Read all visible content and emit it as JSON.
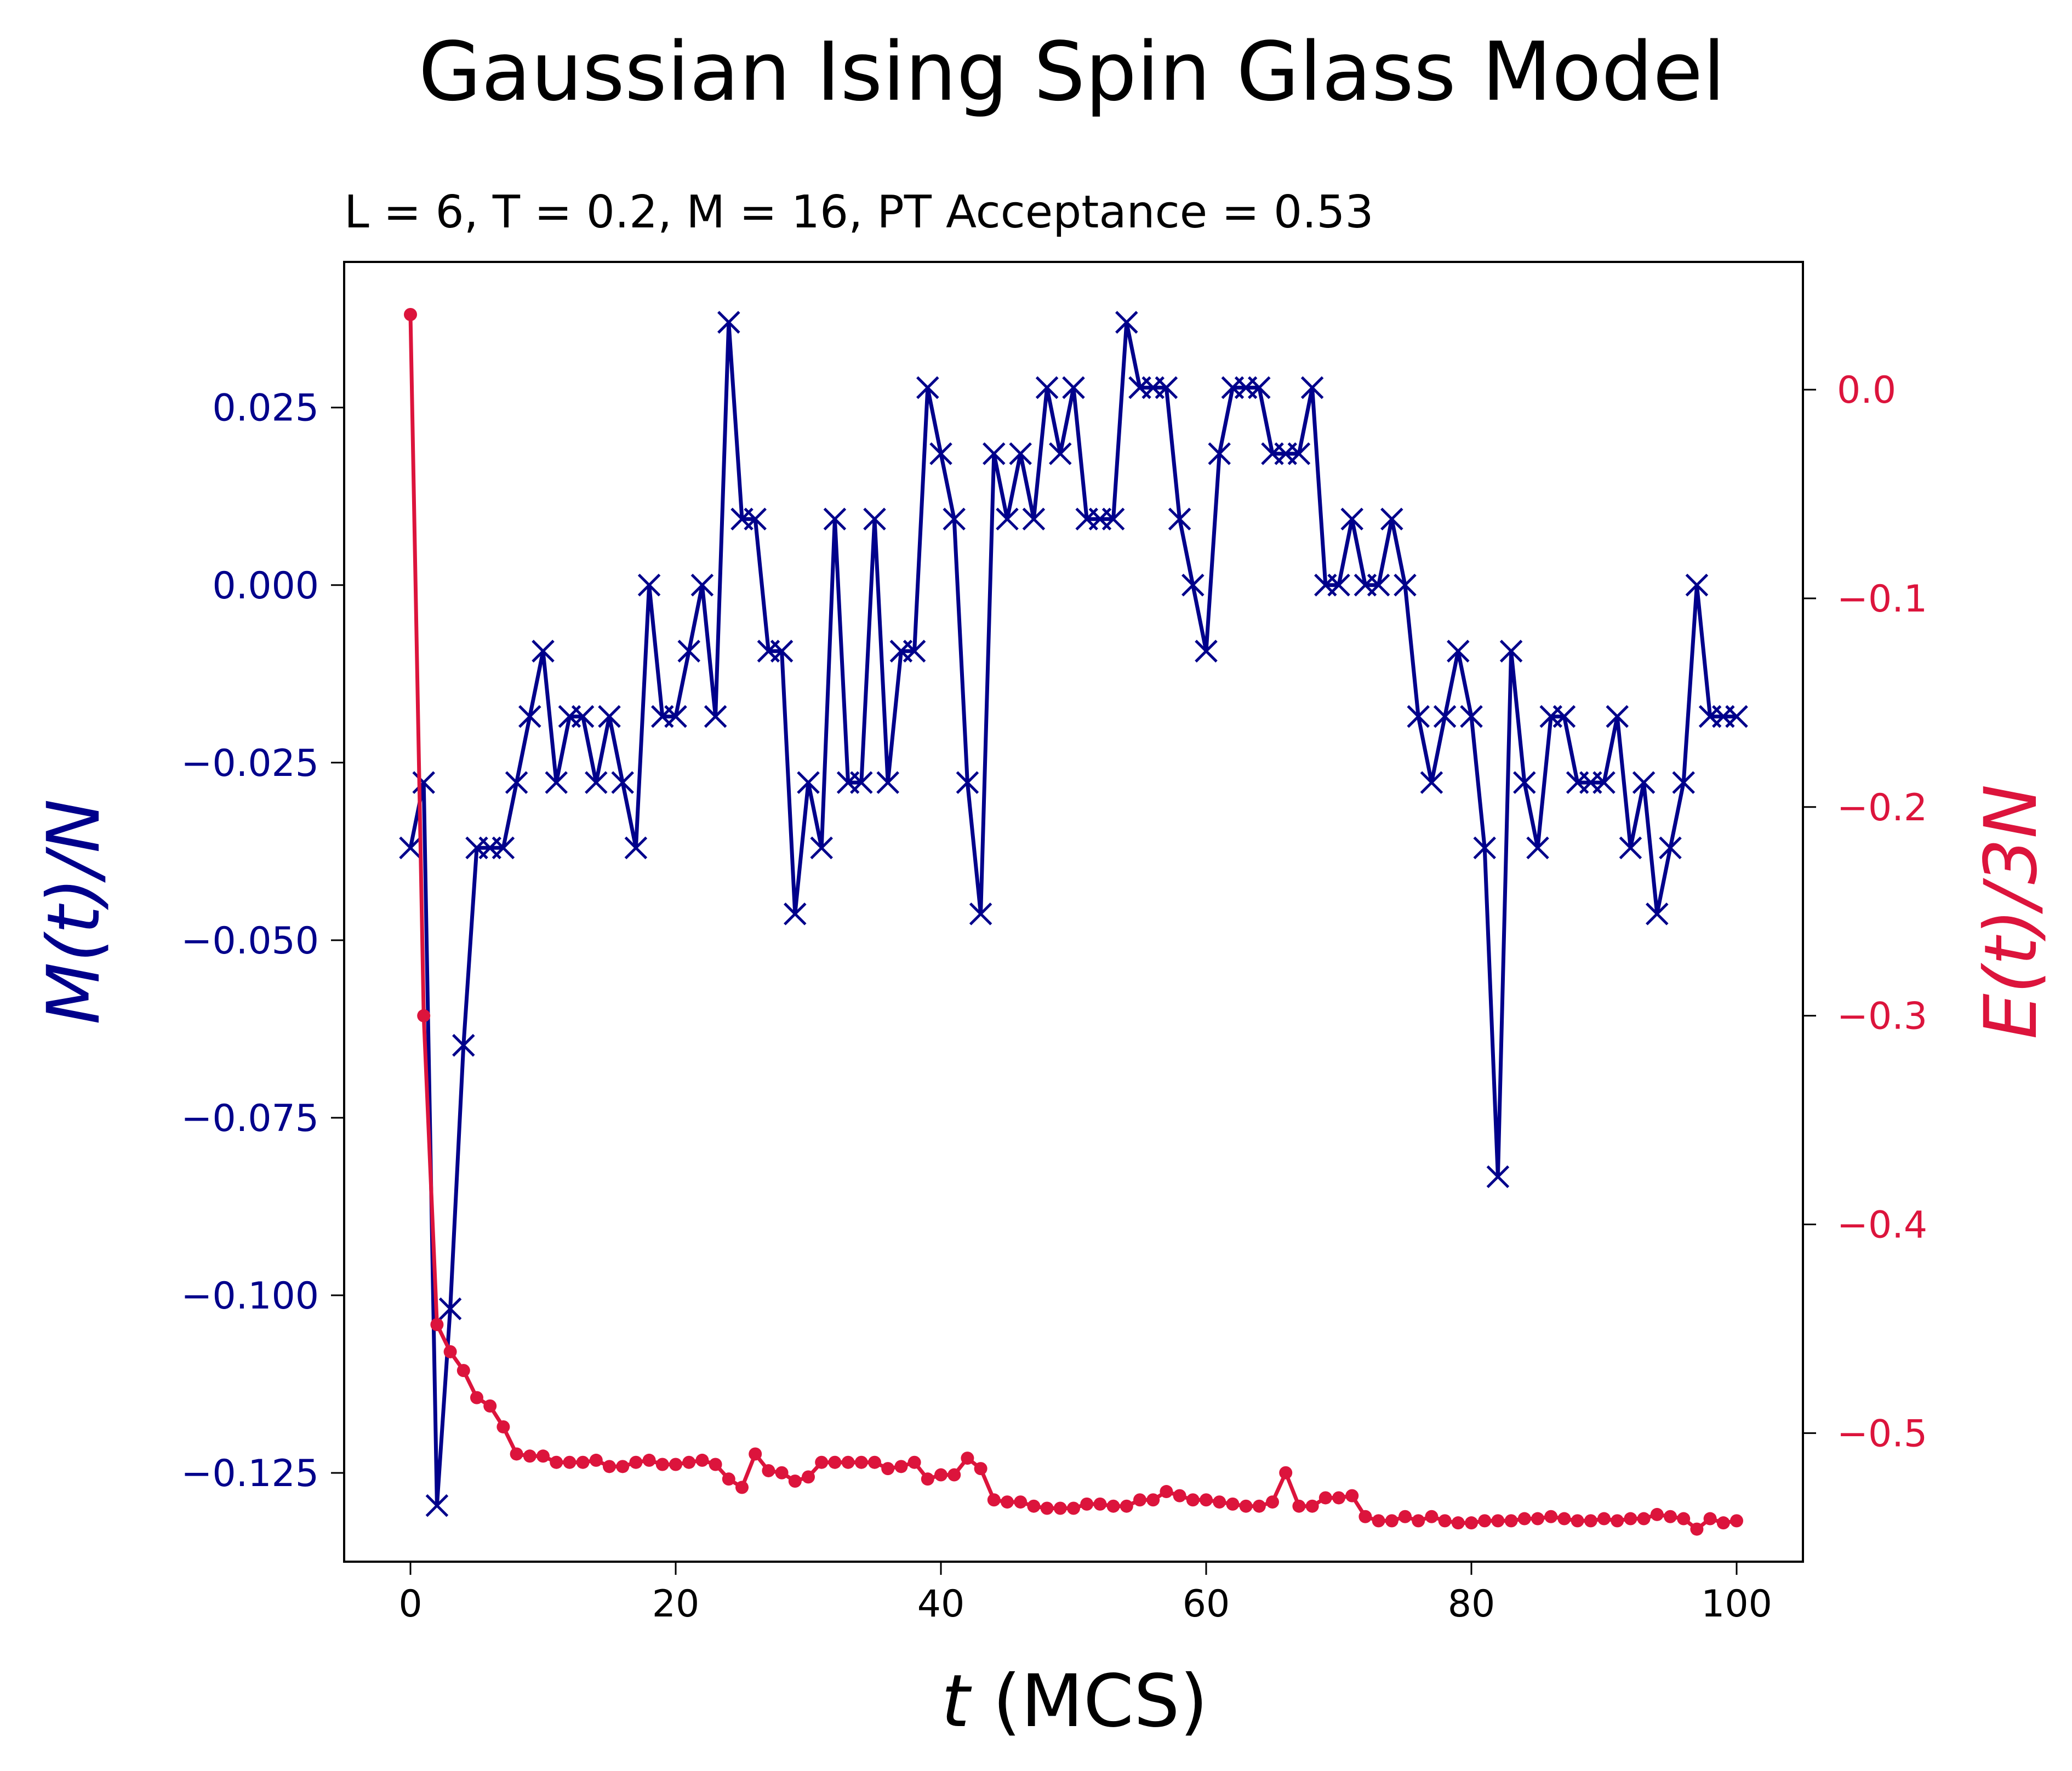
{
  "chart_data": {
    "type": "line",
    "title": "Gaussian Ising Spin Glass Model",
    "subtitle": "L = 6, T = 0.2, M = 16, PT Acceptance = 0.53",
    "xlabel_italic": "t",
    "xlabel_rest": " (MCS)",
    "ylabel_left": "M(t)/N",
    "ylabel_right": "E(t)/3N",
    "xlim": [
      -5,
      105
    ],
    "ylim_left": [
      -0.1375,
      0.0455
    ],
    "ylim_right": [
      -0.5616,
      0.0612
    ],
    "x_ticks": [
      0,
      20,
      40,
      60,
      80,
      100
    ],
    "x_tick_labels": [
      "0",
      "20",
      "40",
      "60",
      "80",
      "100"
    ],
    "y_left_ticks": [
      0.025,
      0.0,
      -0.025,
      -0.05,
      -0.075,
      -0.1,
      -0.125
    ],
    "y_left_tick_labels": [
      "0.025",
      "0.000",
      "−0.025",
      "−0.050",
      "−0.075",
      "−0.100",
      "−0.125"
    ],
    "y_right_ticks": [
      0.0,
      -0.1,
      -0.2,
      -0.3,
      -0.4,
      -0.5
    ],
    "y_right_tick_labels": [
      "0.0",
      "−0.1",
      "−0.2",
      "−0.3",
      "−0.4",
      "−0.5"
    ],
    "colors": {
      "magnetization": "#00008b",
      "energy": "#dc143c",
      "axes": "#000000",
      "background": "#ffffff"
    },
    "series": [
      {
        "axis": "left",
        "marker": "x",
        "color": "#00008b",
        "x": [
          0,
          1,
          2,
          3,
          4,
          5,
          6,
          7,
          8,
          9,
          10,
          11,
          12,
          13,
          14,
          15,
          16,
          17,
          18,
          19,
          20,
          21,
          22,
          23,
          24,
          25,
          26,
          27,
          28,
          29,
          30,
          31,
          32,
          33,
          34,
          35,
          36,
          37,
          38,
          39,
          40,
          41,
          42,
          43,
          44,
          45,
          46,
          47,
          48,
          49,
          50,
          51,
          52,
          53,
          54,
          55,
          56,
          57,
          58,
          59,
          60,
          61,
          62,
          63,
          64,
          65,
          66,
          67,
          68,
          69,
          70,
          71,
          72,
          73,
          74,
          75,
          76,
          77,
          78,
          79,
          80,
          81,
          82,
          83,
          84,
          85,
          86,
          87,
          88,
          89,
          90,
          91,
          92,
          93,
          94,
          95,
          96,
          97,
          98,
          99,
          100
        ],
        "values": [
          -0.037,
          -0.0278,
          -0.1296,
          -0.1019,
          -0.0648,
          -0.037,
          -0.037,
          -0.037,
          -0.0278,
          -0.0185,
          -0.0093,
          -0.0278,
          -0.0185,
          -0.0185,
          -0.0278,
          -0.0185,
          -0.0278,
          -0.037,
          0.0,
          -0.0185,
          -0.0185,
          -0.0093,
          0.0,
          -0.0185,
          0.037,
          0.0093,
          0.0093,
          -0.0093,
          -0.0093,
          -0.0463,
          -0.0278,
          -0.037,
          0.0093,
          -0.0278,
          -0.0278,
          0.0093,
          -0.0278,
          -0.0093,
          -0.0093,
          0.0278,
          0.0185,
          0.0093,
          -0.0278,
          -0.0463,
          0.0185,
          0.0093,
          0.0185,
          0.0093,
          0.0278,
          0.0185,
          0.0278,
          0.0093,
          0.0093,
          0.0093,
          0.037,
          0.0278,
          0.0278,
          0.0278,
          0.0093,
          0.0,
          -0.0093,
          0.0185,
          0.0278,
          0.0278,
          0.0278,
          0.0185,
          0.0185,
          0.0185,
          0.0278,
          0.0,
          0.0,
          0.0093,
          0.0,
          0.0,
          0.0093,
          0.0,
          -0.0185,
          -0.0278,
          -0.0185,
          -0.0093,
          -0.0185,
          -0.037,
          -0.0833,
          -0.0093,
          -0.0278,
          -0.037,
          -0.0185,
          -0.0185,
          -0.0278,
          -0.0278,
          -0.0278,
          -0.0185,
          -0.037,
          -0.0278,
          -0.0463,
          -0.037,
          -0.0278,
          0.0,
          -0.0185,
          -0.0185,
          -0.0185
        ]
      },
      {
        "axis": "right",
        "marker": "o",
        "color": "#dc143c",
        "x": [
          0,
          1,
          2,
          3,
          4,
          5,
          6,
          7,
          8,
          9,
          10,
          11,
          12,
          13,
          14,
          15,
          16,
          17,
          18,
          19,
          20,
          21,
          22,
          23,
          24,
          25,
          26,
          27,
          28,
          29,
          30,
          31,
          32,
          33,
          34,
          35,
          36,
          37,
          38,
          39,
          40,
          41,
          42,
          43,
          44,
          45,
          46,
          47,
          48,
          49,
          50,
          51,
          52,
          53,
          54,
          55,
          56,
          57,
          58,
          59,
          60,
          61,
          62,
          63,
          64,
          65,
          66,
          67,
          68,
          69,
          70,
          71,
          72,
          73,
          74,
          75,
          76,
          77,
          78,
          79,
          80,
          81,
          82,
          83,
          84,
          85,
          86,
          87,
          88,
          89,
          90,
          91,
          92,
          93,
          94,
          95,
          96,
          97,
          98,
          99,
          100
        ],
        "values": [
          0.036,
          -0.3,
          -0.448,
          -0.461,
          -0.47,
          -0.483,
          -0.487,
          -0.497,
          -0.51,
          -0.511,
          -0.511,
          -0.514,
          -0.514,
          -0.514,
          -0.513,
          -0.516,
          -0.516,
          -0.514,
          -0.513,
          -0.515,
          -0.515,
          -0.514,
          -0.513,
          -0.515,
          -0.522,
          -0.526,
          -0.51,
          -0.518,
          -0.519,
          -0.523,
          -0.521,
          -0.514,
          -0.514,
          -0.514,
          -0.514,
          -0.514,
          -0.517,
          -0.516,
          -0.514,
          -0.522,
          -0.52,
          -0.52,
          -0.512,
          -0.517,
          -0.532,
          -0.533,
          -0.533,
          -0.535,
          -0.536,
          -0.536,
          -0.536,
          -0.534,
          -0.534,
          -0.535,
          -0.535,
          -0.532,
          -0.532,
          -0.528,
          -0.53,
          -0.532,
          -0.532,
          -0.533,
          -0.534,
          -0.535,
          -0.535,
          -0.533,
          -0.519,
          -0.535,
          -0.535,
          -0.531,
          -0.531,
          -0.53,
          -0.54,
          -0.542,
          -0.542,
          -0.54,
          -0.542,
          -0.54,
          -0.542,
          -0.543,
          -0.543,
          -0.542,
          -0.542,
          -0.542,
          -0.541,
          -0.541,
          -0.54,
          -0.541,
          -0.542,
          -0.542,
          -0.541,
          -0.542,
          -0.541,
          -0.541,
          -0.539,
          -0.54,
          -0.541,
          -0.546,
          -0.541,
          -0.543,
          -0.542
        ]
      }
    ]
  }
}
